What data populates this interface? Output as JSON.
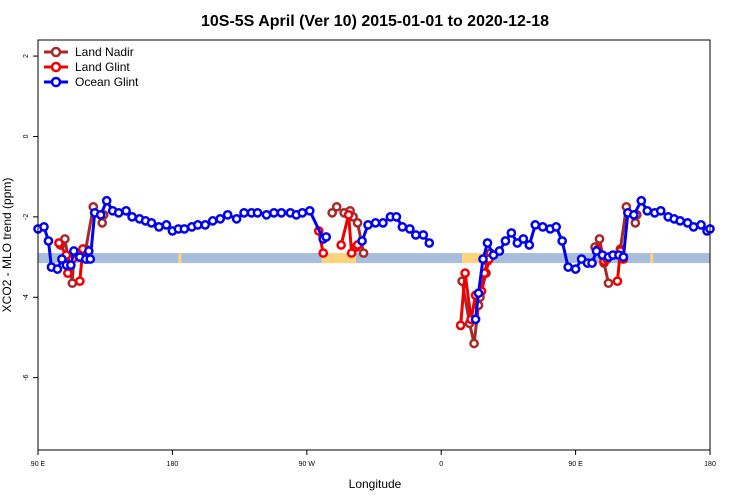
{
  "chart_data": {
    "type": "line",
    "title": "10S-5S April (Ver 10)   2015-01-01 to 2020-12-18",
    "xlabel": "Longitude",
    "ylabel": "XCO2 - MLO trend (ppm)",
    "xlim": [
      -90,
      360
    ],
    "ylim": [
      -7.8,
      2.4
    ],
    "x_ticks": [
      {
        "value": -90,
        "label": "90 E"
      },
      {
        "value": 0,
        "label": "180"
      },
      {
        "value": 90,
        "label": "90 W"
      },
      {
        "value": 180,
        "label": "0"
      },
      {
        "value": 270,
        "label": "90 E"
      },
      {
        "value": 360,
        "label": "180"
      }
    ],
    "y_ticks": [
      {
        "value": 2,
        "label": "2"
      },
      {
        "value": 0,
        "label": "0"
      },
      {
        "value": -2,
        "label": "-2"
      },
      {
        "value": -4,
        "label": "-4"
      },
      {
        "value": -6,
        "label": "-6"
      }
    ],
    "grid": false,
    "legend_position": "top-left",
    "band": {
      "y_from": -3.15,
      "y_to": -2.9,
      "base_color": "#a6bddb",
      "highlight_color": "#fdd47c",
      "highlights": [
        [
          100,
          123
        ],
        [
          194,
          213
        ],
        [
          4,
          6
        ],
        [
          320,
          322
        ]
      ]
    },
    "series": [
      {
        "name": "Land Nadir",
        "color": "#a52a2a",
        "segments": [
          [
            [
              -75,
              -2.7
            ],
            [
              -72,
              -2.55
            ],
            [
              -67,
              -3.65
            ],
            [
              -66,
              -3.0
            ]
          ],
          [
            [
              -58,
              -2.8
            ],
            [
              -53,
              -1.75
            ],
            [
              -47,
              -2.15
            ],
            [
              -46,
              -1.95
            ]
          ],
          [
            [
              107,
              -1.9
            ],
            [
              110,
              -1.75
            ]
          ],
          [
            [
              115,
              -1.9
            ],
            [
              119,
              -1.85
            ],
            [
              121,
              -2.0
            ],
            [
              124,
              -2.15
            ],
            [
              128,
              -2.9
            ]
          ],
          [
            [
              194,
              -3.6
            ],
            [
              199,
              -4.65
            ],
            [
              202,
              -5.15
            ],
            [
              205,
              -4.2
            ],
            [
              206,
              -4.0
            ],
            [
              210,
              -3.4
            ],
            [
              213,
              -2.9
            ]
          ],
          [
            [
              283,
              -2.75
            ],
            [
              286,
              -2.55
            ],
            [
              289,
              -3.15
            ],
            [
              292,
              -3.65
            ]
          ],
          [
            [
              300,
              -2.8
            ],
            [
              304,
              -1.75
            ],
            [
              310,
              -2.15
            ],
            [
              311,
              -1.95
            ]
          ]
        ]
      },
      {
        "name": "Land Glint",
        "color": "#ee0000",
        "segments": [
          [
            [
              -76,
              -2.65
            ],
            [
              -71,
              -2.95
            ],
            [
              -70,
              -3.4
            ],
            [
              -67,
              -3.05
            ]
          ],
          [
            [
              -62,
              -3.6
            ],
            [
              -60,
              -2.8
            ],
            [
              -57,
              -3.05
            ]
          ],
          [
            [
              98,
              -2.35
            ],
            [
              101,
              -2.9
            ]
          ],
          [
            [
              113,
              -2.7
            ],
            [
              118,
              -1.95
            ],
            [
              120,
              -2.9
            ],
            [
              123,
              -2.75
            ],
            [
              124,
              -2.7
            ]
          ],
          [
            [
              193,
              -4.7
            ],
            [
              196,
              -3.4
            ],
            [
              200,
              -4.55
            ],
            [
              203,
              -3.95
            ],
            [
              207,
              -3.85
            ],
            [
              209,
              -3.4
            ],
            [
              211,
              -3.1
            ],
            [
              212,
              -3.05
            ]
          ],
          [
            [
              285,
              -2.8
            ],
            [
              289,
              -3.1
            ],
            [
              291,
              -3.05
            ]
          ],
          [
            [
              298,
              -3.6
            ],
            [
              300,
              -2.85
            ],
            [
              302,
              -3.05
            ]
          ]
        ]
      },
      {
        "name": "Ocean Glint",
        "color": "#0000ee",
        "segments": [
          [
            [
              -90,
              -2.3
            ],
            [
              -86,
              -2.25
            ],
            [
              -83,
              -2.6
            ],
            [
              -81,
              -3.25
            ],
            [
              -77,
              -3.3
            ],
            [
              -74,
              -3.05
            ],
            [
              -71,
              -3.2
            ],
            [
              -68,
              -3.2
            ],
            [
              -66,
              -2.85
            ],
            [
              -62,
              -3.0
            ],
            [
              -58,
              -3.05
            ],
            [
              -56,
              -2.85
            ],
            [
              -55,
              -3.05
            ],
            [
              -52,
              -1.9
            ],
            [
              -48,
              -1.95
            ],
            [
              -44,
              -1.6
            ],
            [
              -40,
              -1.85
            ],
            [
              -36,
              -1.9
            ],
            [
              -31,
              -1.85
            ],
            [
              -27,
              -2.0
            ],
            [
              -22,
              -2.05
            ],
            [
              -18,
              -2.1
            ],
            [
              -14,
              -2.15
            ],
            [
              -9,
              -2.25
            ],
            [
              -4,
              -2.2
            ],
            [
              0,
              -2.35
            ],
            [
              4,
              -2.3
            ],
            [
              8,
              -2.3
            ],
            [
              13,
              -2.25
            ],
            [
              17,
              -2.2
            ],
            [
              22,
              -2.2
            ],
            [
              27,
              -2.1
            ],
            [
              32,
              -2.05
            ],
            [
              37,
              -1.95
            ],
            [
              43,
              -2.05
            ],
            [
              48,
              -1.9
            ],
            [
              53,
              -1.9
            ],
            [
              57,
              -1.9
            ],
            [
              63,
              -1.95
            ],
            [
              68,
              -1.9
            ],
            [
              73,
              -1.9
            ],
            [
              79,
              -1.9
            ],
            [
              83,
              -1.95
            ],
            [
              87,
              -1.9
            ],
            [
              92,
              -1.85
            ],
            [
              101,
              -2.55
            ],
            [
              103,
              -2.5
            ]
          ],
          [
            [
              127,
              -2.6
            ],
            [
              131,
              -2.2
            ],
            [
              136,
              -2.15
            ],
            [
              141,
              -2.15
            ],
            [
              146,
              -2.0
            ],
            [
              150,
              -2.0
            ],
            [
              154,
              -2.25
            ],
            [
              159,
              -2.3
            ],
            [
              163,
              -2.45
            ],
            [
              168,
              -2.45
            ],
            [
              172,
              -2.65
            ]
          ],
          [
            [
              203,
              -4.55
            ],
            [
              205,
              -3.9
            ],
            [
              208,
              -3.05
            ],
            [
              211,
              -2.65
            ],
            [
              215,
              -2.95
            ],
            [
              219,
              -2.85
            ],
            [
              223,
              -2.6
            ],
            [
              227,
              -2.4
            ],
            [
              231,
              -2.65
            ],
            [
              235,
              -2.55
            ],
            [
              239,
              -2.7
            ],
            [
              243,
              -2.2
            ],
            [
              248,
              -2.25
            ],
            [
              253,
              -2.3
            ],
            [
              257,
              -2.25
            ],
            [
              261,
              -2.6
            ],
            [
              265,
              -3.25
            ],
            [
              270,
              -3.3
            ],
            [
              274,
              -3.05
            ],
            [
              278,
              -3.15
            ],
            [
              281,
              -3.15
            ],
            [
              284,
              -2.85
            ],
            [
              288,
              -2.95
            ],
            [
              292,
              -3.0
            ],
            [
              295,
              -2.95
            ],
            [
              299,
              -2.95
            ],
            [
              302,
              -3.0
            ],
            [
              305,
              -1.9
            ],
            [
              309,
              -1.95
            ],
            [
              314,
              -1.6
            ],
            [
              318,
              -1.85
            ],
            [
              323,
              -1.9
            ],
            [
              327,
              -1.85
            ],
            [
              332,
              -2.0
            ],
            [
              336,
              -2.05
            ],
            [
              340,
              -2.1
            ],
            [
              345,
              -2.15
            ],
            [
              349,
              -2.25
            ],
            [
              354,
              -2.2
            ],
            [
              358,
              -2.35
            ],
            [
              360,
              -2.3
            ]
          ]
        ]
      }
    ]
  }
}
